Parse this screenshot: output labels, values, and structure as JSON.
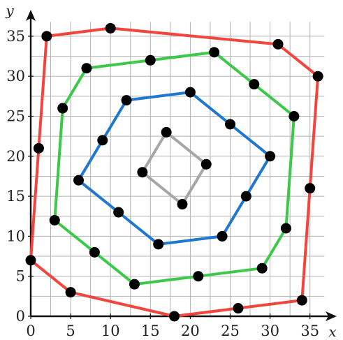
{
  "chart_data": {
    "type": "line",
    "title": "",
    "xlabel": "x",
    "ylabel": "y",
    "xlim": [
      0,
      36
    ],
    "ylim": [
      0,
      36
    ],
    "xticks": [
      0,
      5,
      10,
      15,
      20,
      25,
      30,
      35
    ],
    "yticks": [
      0,
      5,
      10,
      15,
      20,
      25,
      30,
      35
    ],
    "grid": true,
    "closed_polygons": true,
    "series": [
      {
        "color": "#f2453d",
        "points": [
          [
            0,
            7
          ],
          [
            5,
            3
          ],
          [
            18,
            0
          ],
          [
            26,
            1
          ],
          [
            34,
            2
          ],
          [
            35,
            16
          ],
          [
            36,
            30
          ],
          [
            31,
            34
          ],
          [
            10,
            36
          ],
          [
            2,
            35
          ],
          [
            1,
            21
          ]
        ]
      },
      {
        "color": "#3cc94a",
        "points": [
          [
            3,
            12
          ],
          [
            8,
            8
          ],
          [
            13,
            4
          ],
          [
            21,
            5
          ],
          [
            29,
            6
          ],
          [
            32,
            11
          ],
          [
            33,
            25
          ],
          [
            28,
            29
          ],
          [
            23,
            33
          ],
          [
            15,
            32
          ],
          [
            7,
            31
          ],
          [
            4,
            26
          ]
        ]
      },
      {
        "color": "#1f77d0",
        "points": [
          [
            6,
            17
          ],
          [
            11,
            13
          ],
          [
            16,
            9
          ],
          [
            24,
            10
          ],
          [
            27,
            15
          ],
          [
            30,
            20
          ],
          [
            25,
            24
          ],
          [
            20,
            28
          ],
          [
            12,
            27
          ],
          [
            9,
            22
          ]
        ]
      },
      {
        "color": "#a6a6a6",
        "points": [
          [
            14,
            18
          ],
          [
            17,
            23
          ],
          [
            22,
            19
          ],
          [
            19,
            14
          ]
        ]
      }
    ]
  }
}
